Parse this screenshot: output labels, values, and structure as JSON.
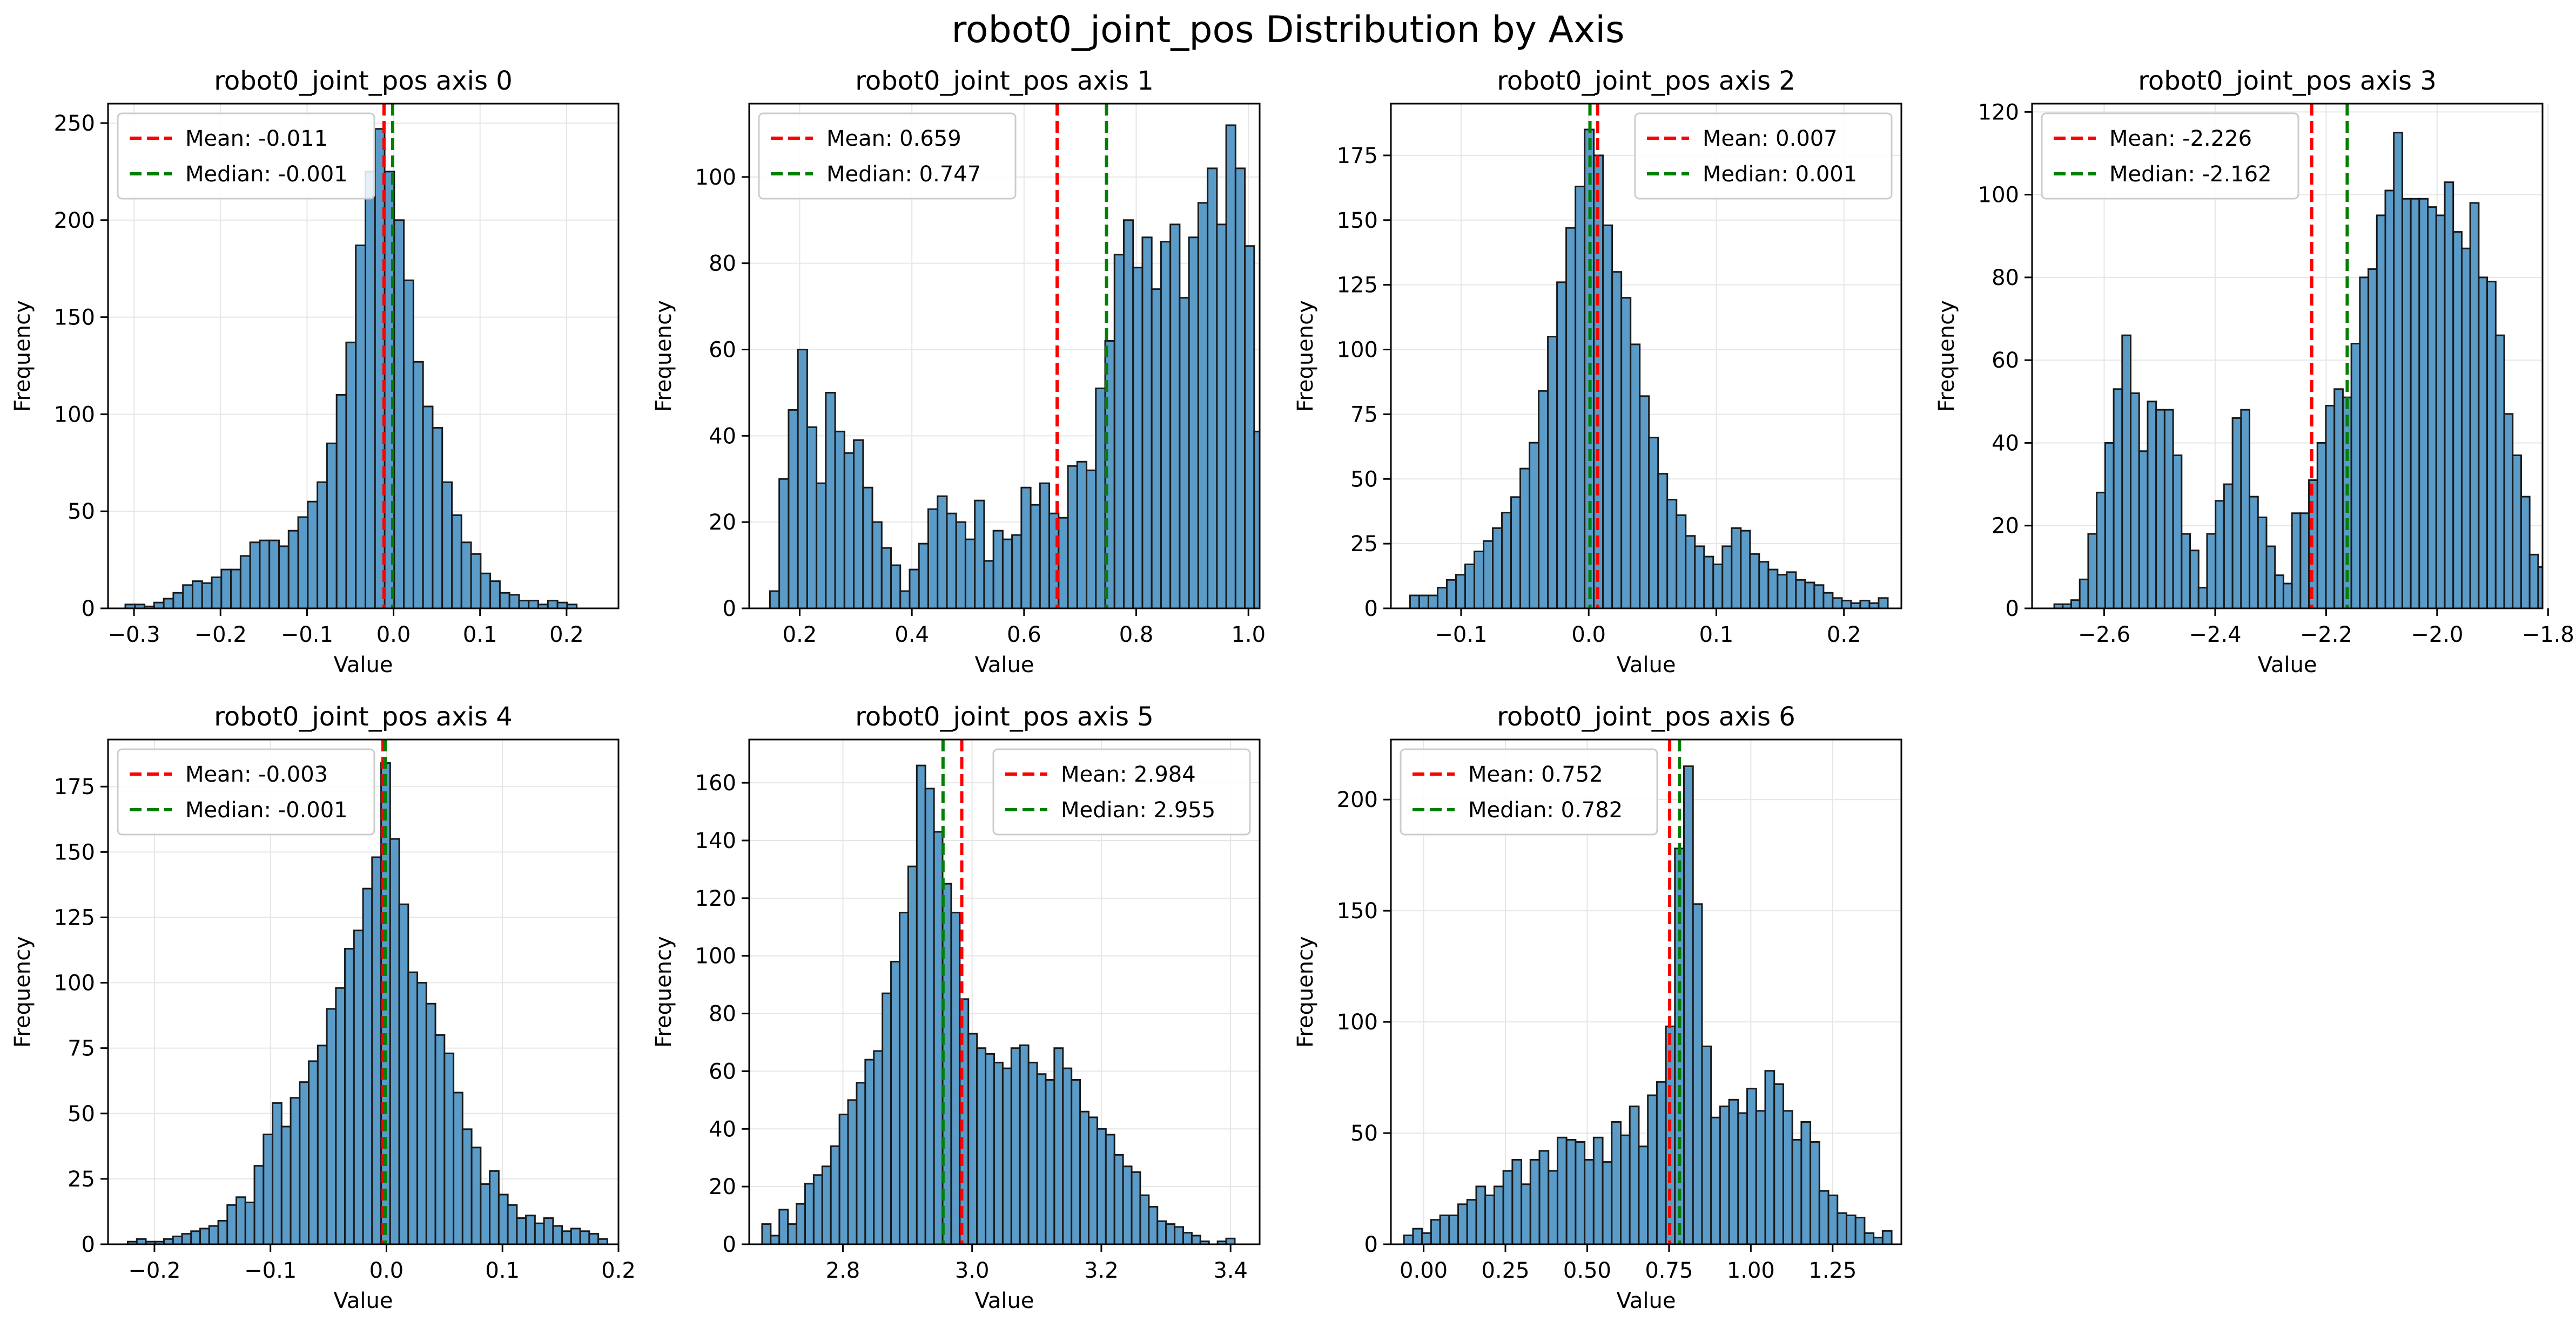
{
  "figure": {
    "title": "robot0_joint_pos Distribution by Axis"
  },
  "colors": {
    "bar_fill": "#5b9bc8",
    "bar_edge": "#1a1a1a",
    "mean_line": "#ff0000",
    "median_line": "#008000",
    "grid": "#e6e6e6"
  },
  "chart_data": [
    {
      "type": "bar",
      "title": "robot0_joint_pos axis 0",
      "xlabel": "Value",
      "ylabel": "Frequency",
      "xlim": [
        -0.33,
        0.26
      ],
      "ylim": [
        0,
        260
      ],
      "xticks": [
        -0.3,
        -0.2,
        -0.1,
        0.0,
        0.1,
        0.2
      ],
      "xtick_labels": [
        "−0.3",
        "−0.2",
        "−0.1",
        "0.0",
        "0.1",
        "0.2"
      ],
      "yticks": [
        0,
        50,
        100,
        150,
        200,
        250
      ],
      "ytick_labels": [
        "0",
        "50",
        "100",
        "150",
        "200",
        "250"
      ],
      "bin_start": -0.31,
      "bin_width": 0.0111,
      "counts": [
        2,
        2,
        1,
        3,
        5,
        8,
        12,
        14,
        13,
        16,
        20,
        20,
        27,
        34,
        35,
        35,
        32,
        40,
        47,
        55,
        65,
        85,
        110,
        137,
        187,
        225,
        247,
        225,
        200,
        169,
        127,
        104,
        93,
        65,
        48,
        34,
        28,
        18,
        14,
        8,
        7,
        4,
        4,
        2,
        4,
        3,
        2,
        0
      ],
      "mean": -0.011,
      "median": -0.001,
      "legend": {
        "mean_label": "Mean: -0.011",
        "median_label": "Median: -0.001",
        "position": "upper-left"
      }
    },
    {
      "type": "bar",
      "title": "robot0_joint_pos axis 1",
      "xlabel": "Value",
      "ylabel": "Frequency",
      "xlim": [
        0.11,
        1.02
      ],
      "ylim": [
        0,
        117
      ],
      "xticks": [
        0.2,
        0.4,
        0.6,
        0.8,
        1.0
      ],
      "xtick_labels": [
        "0.2",
        "0.4",
        "0.6",
        "0.8",
        "1.0"
      ],
      "yticks": [
        0,
        20,
        40,
        60,
        80,
        100
      ],
      "ytick_labels": [
        "0",
        "20",
        "40",
        "60",
        "80",
        "100"
      ],
      "bin_start": 0.147,
      "bin_width": 0.0166,
      "counts": [
        4,
        30,
        46,
        60,
        42,
        29,
        50,
        41,
        36,
        39,
        28,
        20,
        14,
        10,
        4,
        9,
        15,
        23,
        26,
        22,
        20,
        16,
        25,
        11,
        18,
        16,
        17,
        28,
        24,
        29,
        22,
        21,
        33,
        34,
        32,
        51,
        62,
        82,
        90,
        79,
        86,
        74,
        85,
        89,
        72,
        86,
        94,
        102,
        89,
        112,
        102,
        84,
        41,
        5
      ],
      "mean": 0.659,
      "median": 0.747,
      "legend": {
        "mean_label": "Mean: 0.659",
        "median_label": "Median: 0.747",
        "position": "upper-left"
      }
    },
    {
      "type": "bar",
      "title": "robot0_joint_pos axis 2",
      "xlabel": "Value",
      "ylabel": "Frequency",
      "xlim": [
        -0.155,
        0.245
      ],
      "ylim": [
        0,
        195
      ],
      "xticks": [
        -0.1,
        0.0,
        0.1,
        0.2
      ],
      "xtick_labels": [
        "−0.1",
        "0.0",
        "0.1",
        "0.2"
      ],
      "yticks": [
        0,
        25,
        50,
        75,
        100,
        125,
        150,
        175
      ],
      "ytick_labels": [
        "0",
        "25",
        "50",
        "75",
        "100",
        "125",
        "150",
        "175"
      ],
      "bin_start": -0.14,
      "bin_width": 0.0072,
      "counts": [
        5,
        5,
        5,
        8,
        11,
        13,
        17,
        22,
        26,
        31,
        37,
        43,
        54,
        64,
        84,
        105,
        126,
        147,
        163,
        185,
        175,
        148,
        130,
        120,
        102,
        82,
        66,
        52,
        42,
        36,
        28,
        24,
        20,
        17,
        24,
        31,
        30,
        21,
        18,
        15,
        13,
        14,
        11,
        10,
        9,
        6,
        4,
        3,
        2,
        3,
        2,
        4
      ],
      "mean": 0.007,
      "median": 0.001,
      "legend": {
        "mean_label": "Mean: 0.007",
        "median_label": "Median: 0.001",
        "position": "upper-right"
      }
    },
    {
      "type": "bar",
      "title": "robot0_joint_pos axis 3",
      "xlabel": "Value",
      "ylabel": "Frequency",
      "xlim": [
        -2.73,
        -1.81
      ],
      "ylim": [
        0,
        122
      ],
      "xticks": [
        -2.6,
        -2.4,
        -2.2,
        -2.0,
        -1.8
      ],
      "xtick_labels": [
        "−2.6",
        "−2.4",
        "−2.2",
        "−2.0",
        "−1.8"
      ],
      "yticks": [
        0,
        20,
        40,
        60,
        80,
        100,
        120
      ],
      "ytick_labels": [
        "0",
        "20",
        "40",
        "60",
        "80",
        "100",
        "120"
      ],
      "bin_start": -2.69,
      "bin_width": 0.0153,
      "counts": [
        1,
        1,
        2,
        7,
        18,
        28,
        40,
        53,
        66,
        52,
        38,
        50,
        48,
        48,
        37,
        18,
        14,
        5,
        18,
        26,
        30,
        46,
        48,
        27,
        22,
        15,
        8,
        6,
        23,
        23,
        31,
        40,
        49,
        53,
        51,
        64,
        80,
        82,
        95,
        101,
        115,
        99,
        99,
        99,
        97,
        95,
        103,
        91,
        87,
        98,
        80,
        79,
        66,
        47,
        37,
        27,
        13,
        10,
        6,
        11,
        11
      ],
      "mean": -2.226,
      "median": -2.162,
      "legend": {
        "mean_label": "Mean: -2.226",
        "median_label": "Median: -2.162",
        "position": "upper-left"
      }
    },
    {
      "type": "bar",
      "title": "robot0_joint_pos axis 4",
      "xlabel": "Value",
      "ylabel": "Frequency",
      "xlim": [
        -0.24,
        0.2
      ],
      "ylim": [
        0,
        193
      ],
      "xticks": [
        -0.2,
        -0.1,
        0.0,
        0.1,
        0.2
      ],
      "xtick_labels": [
        "−0.2",
        "−0.1",
        "0.0",
        "0.1",
        "0.2"
      ],
      "yticks": [
        0,
        25,
        50,
        75,
        100,
        125,
        150,
        175
      ],
      "ytick_labels": [
        "0",
        "25",
        "50",
        "75",
        "100",
        "125",
        "150",
        "175"
      ],
      "bin_start": -0.223,
      "bin_width": 0.0078,
      "counts": [
        1,
        2,
        1,
        1,
        2,
        3,
        4,
        5,
        6,
        7,
        9,
        15,
        18,
        16,
        30,
        42,
        54,
        45,
        56,
        62,
        70,
        76,
        90,
        98,
        113,
        120,
        136,
        148,
        184,
        155,
        130,
        104,
        100,
        92,
        80,
        73,
        58,
        44,
        37,
        23,
        28,
        19,
        15,
        10,
        11,
        8,
        10,
        7,
        5,
        6,
        5,
        4,
        2
      ],
      "mean": -0.003,
      "median": -0.001,
      "legend": {
        "mean_label": "Mean: -0.003",
        "median_label": "Median: -0.001",
        "position": "upper-left"
      }
    },
    {
      "type": "bar",
      "title": "robot0_joint_pos axis 5",
      "xlabel": "Value",
      "ylabel": "Frequency",
      "xlim": [
        2.655,
        3.445
      ],
      "ylim": [
        0,
        175
      ],
      "xticks": [
        2.8,
        3.0,
        3.2,
        3.4
      ],
      "xtick_labels": [
        "2.8",
        "3.0",
        "3.2",
        "3.4"
      ],
      "yticks": [
        0,
        20,
        40,
        60,
        80,
        100,
        120,
        140,
        160
      ],
      "ytick_labels": [
        "0",
        "20",
        "40",
        "60",
        "80",
        "100",
        "120",
        "140",
        "160"
      ],
      "bin_start": 2.675,
      "bin_width": 0.0133,
      "counts": [
        7,
        3,
        12,
        7,
        14,
        21,
        24,
        27,
        34,
        45,
        50,
        56,
        64,
        67,
        87,
        98,
        115,
        131,
        166,
        158,
        143,
        125,
        115,
        85,
        73,
        68,
        66,
        63,
        61,
        68,
        69,
        63,
        59,
        57,
        68,
        61,
        57,
        46,
        44,
        40,
        38,
        31,
        27,
        25,
        17,
        13,
        8,
        7,
        6,
        4,
        3,
        1,
        0,
        1,
        2
      ],
      "mean": 2.984,
      "median": 2.955,
      "legend": {
        "mean_label": "Mean: 2.984",
        "median_label": "Median: 2.955",
        "position": "upper-right"
      }
    },
    {
      "type": "bar",
      "title": "robot0_joint_pos axis 6",
      "xlabel": "Value",
      "ylabel": "Frequency",
      "xlim": [
        -0.1,
        1.46
      ],
      "ylim": [
        0,
        227
      ],
      "xticks": [
        0.0,
        0.25,
        0.5,
        0.75,
        1.0,
        1.25
      ],
      "xtick_labels": [
        "0.00",
        "0.25",
        "0.50",
        "0.75",
        "1.00",
        "1.25"
      ],
      "yticks": [
        0,
        50,
        100,
        150,
        200
      ],
      "ytick_labels": [
        "0",
        "50",
        "100",
        "150",
        "200"
      ],
      "bin_start": -0.06,
      "bin_width": 0.0276,
      "counts": [
        4,
        7,
        5,
        11,
        13,
        13,
        18,
        20,
        26,
        22,
        26,
        33,
        38,
        27,
        38,
        42,
        33,
        48,
        47,
        46,
        38,
        48,
        37,
        55,
        49,
        62,
        44,
        67,
        73,
        98,
        178,
        215,
        153,
        89,
        57,
        62,
        65,
        59,
        70,
        60,
        78,
        72,
        60,
        47,
        55,
        46,
        24,
        22,
        14,
        13,
        12,
        5,
        3,
        6
      ],
      "mean": 0.752,
      "median": 0.782,
      "legend": {
        "mean_label": "Mean: 0.752",
        "median_label": "Median: 0.782",
        "position": "upper-left"
      }
    }
  ]
}
